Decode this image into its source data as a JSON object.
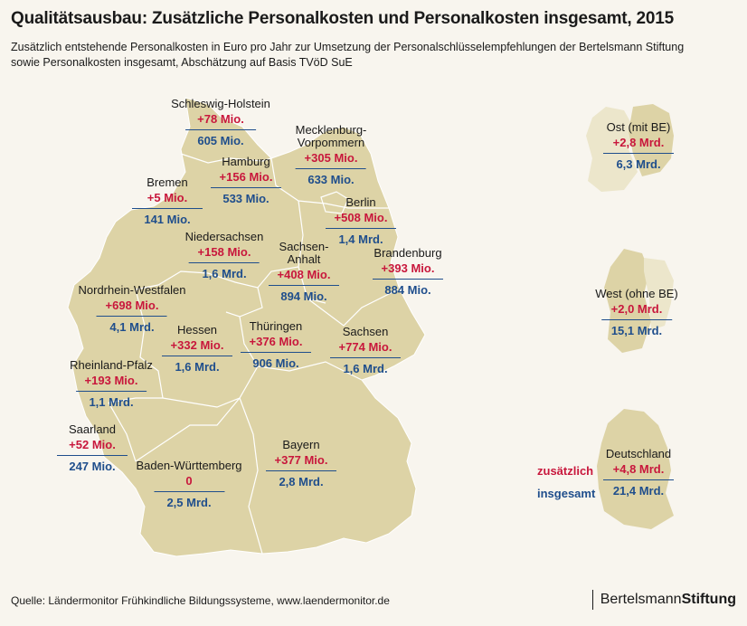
{
  "title": "Qualitätsausbau: Zusätzliche Personalkosten und Personalkosten insgesamt, 2015",
  "subtitle_line1": "Zusätzlich entstehende Personalkosten in Euro pro Jahr zur Umsetzung der Personalschlüsselempfehlungen der Bertelsmann Stiftung",
  "subtitle_line2": "sowie Personalkosten insgesamt, Abschätzung auf Basis TVöD SuE",
  "colors": {
    "additional": "#c8173c",
    "total": "#1f4e8c",
    "land": "#ddd3a6",
    "background": "#f8f5ee"
  },
  "states": [
    {
      "name": "Schleswig-Holstein",
      "additional": "+78 Mio.",
      "total": "605 Mio."
    },
    {
      "name": "Mecklenburg-Vorpommern",
      "additional": "+305 Mio.",
      "total": "633 Mio."
    },
    {
      "name": "Hamburg",
      "additional": "+156 Mio.",
      "total": "533 Mio."
    },
    {
      "name": "Bremen",
      "additional": "+5 Mio.",
      "total": "141 Mio."
    },
    {
      "name": "Berlin",
      "additional": "+508 Mio.",
      "total": "1,4 Mrd."
    },
    {
      "name": "Niedersachsen",
      "additional": "+158 Mio.",
      "total": "1,6 Mrd."
    },
    {
      "name": "Sachsen-Anhalt",
      "additional": "+408 Mio.",
      "total": "894 Mio."
    },
    {
      "name": "Brandenburg",
      "additional": "+393 Mio.",
      "total": "884 Mio."
    },
    {
      "name": "Nordrhein-Westfalen",
      "additional": "+698 Mio.",
      "total": "4,1 Mrd."
    },
    {
      "name": "Hessen",
      "additional": "+332 Mio.",
      "total": "1,6 Mrd."
    },
    {
      "name": "Thüringen",
      "additional": "+376 Mio.",
      "total": "906 Mio."
    },
    {
      "name": "Sachsen",
      "additional": "+774 Mio.",
      "total": "1,6 Mrd."
    },
    {
      "name": "Rheinland-Pfalz",
      "additional": "+193 Mio.",
      "total": "1,1 Mrd."
    },
    {
      "name": "Saarland",
      "additional": "+52 Mio.",
      "total": "247 Mio."
    },
    {
      "name": "Baden-Württemberg",
      "additional": "0",
      "total": "2,5 Mrd."
    },
    {
      "name": "Bayern",
      "additional": "+377 Mio.",
      "total": "2,8 Mrd."
    }
  ],
  "regions": [
    {
      "name": "Ost (mit BE)",
      "additional": "+2,8 Mrd.",
      "total": "6,3 Mrd."
    },
    {
      "name": "West (ohne BE)",
      "additional": "+2,0 Mrd.",
      "total": "15,1 Mrd."
    },
    {
      "name": "Deutschland",
      "additional": "+4,8 Mrd.",
      "total": "21,4 Mrd."
    }
  ],
  "legend": {
    "additional_label": "zusätzlich",
    "total_label": "insgesamt"
  },
  "source": "Quelle: Ländermonitor Frühkindliche Bildungssysteme, www.laendermonitor.de",
  "brand": {
    "part1": "Bertelsmann",
    "part2": "Stiftung"
  }
}
